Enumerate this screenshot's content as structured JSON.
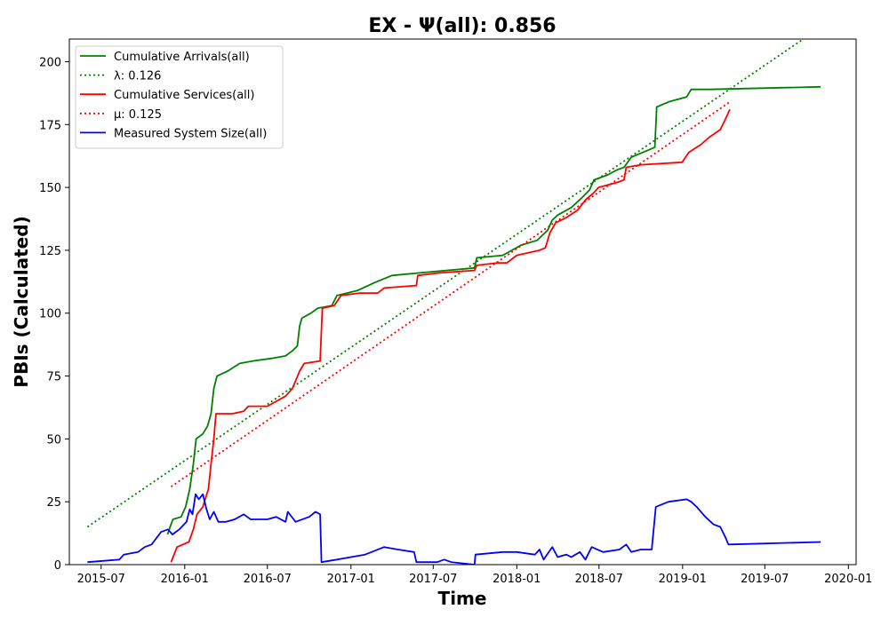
{
  "chart_data": {
    "type": "line",
    "title": "EX -  Ψ(all): 0.856",
    "xlabel": "Time",
    "ylabel": "PBIs (Calculated)",
    "xlim": [
      "2015-04-22",
      "2020-01-18"
    ],
    "ylim": [
      0,
      209
    ],
    "x_ticks": [
      {
        "date": "2015-07-01",
        "label": "2015-07"
      },
      {
        "date": "2016-01-01",
        "label": "2016-01"
      },
      {
        "date": "2016-07-01",
        "label": "2016-07"
      },
      {
        "date": "2017-01-01",
        "label": "2017-01"
      },
      {
        "date": "2017-07-01",
        "label": "2017-07"
      },
      {
        "date": "2018-01-01",
        "label": "2018-01"
      },
      {
        "date": "2018-07-01",
        "label": "2018-07"
      },
      {
        "date": "2019-01-01",
        "label": "2019-01"
      },
      {
        "date": "2019-07-01",
        "label": "2019-07"
      },
      {
        "date": "2020-01-01",
        "label": "2020-01"
      }
    ],
    "y_ticks": [
      0,
      25,
      50,
      75,
      100,
      125,
      150,
      175,
      200
    ],
    "grid": false,
    "legend_position": "top-left",
    "series": [
      {
        "name": "Cumulative Arrivals(all)",
        "color": "#008000",
        "style": "solid",
        "points": [
          [
            "2015-11-24",
            12
          ],
          [
            "2015-11-30",
            15
          ],
          [
            "2015-12-06",
            18
          ],
          [
            "2015-12-24",
            19
          ],
          [
            "2016-01-03",
            23
          ],
          [
            "2016-01-12",
            30
          ],
          [
            "2016-01-20",
            40
          ],
          [
            "2016-01-26",
            50
          ],
          [
            "2016-02-10",
            52
          ],
          [
            "2016-02-20",
            55
          ],
          [
            "2016-02-28",
            60
          ],
          [
            "2016-03-05",
            70
          ],
          [
            "2016-03-12",
            75
          ],
          [
            "2016-04-05",
            77
          ],
          [
            "2016-05-01",
            80
          ],
          [
            "2016-05-30",
            81
          ],
          [
            "2016-07-10",
            82
          ],
          [
            "2016-08-10",
            83
          ],
          [
            "2016-08-25",
            85
          ],
          [
            "2016-09-05",
            87
          ],
          [
            "2016-09-10",
            95
          ],
          [
            "2016-09-15",
            98
          ],
          [
            "2016-10-05",
            100
          ],
          [
            "2016-10-20",
            102
          ],
          [
            "2016-11-20",
            103
          ],
          [
            "2016-12-01",
            107
          ],
          [
            "2017-01-15",
            109
          ],
          [
            "2017-02-20",
            112
          ],
          [
            "2017-04-01",
            115
          ],
          [
            "2017-06-01",
            116
          ],
          [
            "2017-09-30",
            118
          ],
          [
            "2017-10-05",
            122
          ],
          [
            "2017-12-01",
            123
          ],
          [
            "2018-01-10",
            127
          ],
          [
            "2018-02-15",
            129
          ],
          [
            "2018-03-10",
            133
          ],
          [
            "2018-03-20",
            137
          ],
          [
            "2018-04-01",
            139
          ],
          [
            "2018-05-01",
            142
          ],
          [
            "2018-05-25",
            146
          ],
          [
            "2018-06-10",
            149
          ],
          [
            "2018-06-20",
            153
          ],
          [
            "2018-07-20",
            155
          ],
          [
            "2018-08-10",
            157
          ],
          [
            "2018-08-25",
            158
          ],
          [
            "2018-09-10",
            162
          ],
          [
            "2018-10-20",
            165
          ],
          [
            "2018-11-01",
            166
          ],
          [
            "2018-11-05",
            182
          ],
          [
            "2018-12-01",
            184
          ],
          [
            "2019-01-10",
            186
          ],
          [
            "2019-01-20",
            189
          ],
          [
            "2019-03-01",
            189
          ],
          [
            "2019-11-01",
            190
          ]
        ]
      },
      {
        "name": "λ: 0.126",
        "color": "#008000",
        "style": "dotted",
        "points": [
          [
            "2015-06-01",
            15
          ],
          [
            "2019-10-10",
            211
          ]
        ]
      },
      {
        "name": "Cumulative Services(all)",
        "color": "#ff0000",
        "style": "solid",
        "points": [
          [
            "2015-12-02",
            1
          ],
          [
            "2015-12-15",
            7
          ],
          [
            "2016-01-10",
            9
          ],
          [
            "2016-01-20",
            14
          ],
          [
            "2016-01-28",
            20
          ],
          [
            "2016-02-10",
            23
          ],
          [
            "2016-02-22",
            30
          ],
          [
            "2016-02-28",
            40
          ],
          [
            "2016-03-05",
            50
          ],
          [
            "2016-03-10",
            60
          ],
          [
            "2016-04-15",
            60
          ],
          [
            "2016-05-10",
            61
          ],
          [
            "2016-05-20",
            63
          ],
          [
            "2016-07-01",
            63
          ],
          [
            "2016-08-10",
            67
          ],
          [
            "2016-08-25",
            70
          ],
          [
            "2016-09-10",
            77
          ],
          [
            "2016-09-20",
            80
          ],
          [
            "2016-10-25",
            81
          ],
          [
            "2016-10-30",
            102
          ],
          [
            "2016-11-25",
            103
          ],
          [
            "2016-12-10",
            107
          ],
          [
            "2017-01-20",
            108
          ],
          [
            "2017-03-01",
            108
          ],
          [
            "2017-03-15",
            110
          ],
          [
            "2017-05-25",
            111
          ],
          [
            "2017-05-28",
            115
          ],
          [
            "2017-07-15",
            116
          ],
          [
            "2017-09-30",
            117
          ],
          [
            "2017-10-05",
            119
          ],
          [
            "2017-11-20",
            120
          ],
          [
            "2017-12-10",
            120
          ],
          [
            "2018-01-01",
            123
          ],
          [
            "2018-02-20",
            125
          ],
          [
            "2018-03-05",
            126
          ],
          [
            "2018-03-15",
            132
          ],
          [
            "2018-03-28",
            136
          ],
          [
            "2018-04-20",
            138
          ],
          [
            "2018-05-15",
            141
          ],
          [
            "2018-06-01",
            145
          ],
          [
            "2018-06-20",
            148
          ],
          [
            "2018-06-30",
            150
          ],
          [
            "2018-08-10",
            152
          ],
          [
            "2018-08-25",
            153
          ],
          [
            "2018-08-30",
            158
          ],
          [
            "2018-10-01",
            159
          ],
          [
            "2018-12-31",
            160
          ],
          [
            "2019-01-15",
            164
          ],
          [
            "2019-02-10",
            167
          ],
          [
            "2019-03-01",
            170
          ],
          [
            "2019-03-25",
            173
          ],
          [
            "2019-04-05",
            177
          ],
          [
            "2019-04-15",
            181
          ]
        ]
      },
      {
        "name": "μ: 0.125",
        "color": "#ff0000",
        "style": "dotted",
        "points": [
          [
            "2015-12-02",
            31
          ],
          [
            "2019-04-15",
            184
          ]
        ]
      },
      {
        "name": "Measured System Size(all)",
        "color": "#0000ff",
        "style": "solid",
        "points": [
          [
            "2015-06-01",
            1
          ],
          [
            "2015-08-10",
            2
          ],
          [
            "2015-08-20",
            4
          ],
          [
            "2015-09-20",
            5
          ],
          [
            "2015-10-05",
            7
          ],
          [
            "2015-10-20",
            8
          ],
          [
            "2015-11-10",
            13
          ],
          [
            "2015-11-25",
            14
          ],
          [
            "2015-12-05",
            12
          ],
          [
            "2015-12-20",
            14
          ],
          [
            "2016-01-05",
            17
          ],
          [
            "2016-01-12",
            22
          ],
          [
            "2016-01-18",
            20
          ],
          [
            "2016-01-25",
            28
          ],
          [
            "2016-02-01",
            26
          ],
          [
            "2016-02-10",
            28
          ],
          [
            "2016-02-18",
            22
          ],
          [
            "2016-02-25",
            18
          ],
          [
            "2016-03-05",
            21
          ],
          [
            "2016-03-15",
            17
          ],
          [
            "2016-04-01",
            17
          ],
          [
            "2016-04-20",
            18
          ],
          [
            "2016-05-10",
            20
          ],
          [
            "2016-05-25",
            18
          ],
          [
            "2016-07-01",
            18
          ],
          [
            "2016-07-20",
            19
          ],
          [
            "2016-08-10",
            17
          ],
          [
            "2016-08-15",
            21
          ],
          [
            "2016-09-01",
            17
          ],
          [
            "2016-10-01",
            19
          ],
          [
            "2016-10-15",
            21
          ],
          [
            "2016-10-25",
            20
          ],
          [
            "2016-10-28",
            1
          ],
          [
            "2016-12-01",
            2
          ],
          [
            "2017-01-01",
            3
          ],
          [
            "2017-02-01",
            4
          ],
          [
            "2017-03-15",
            7
          ],
          [
            "2017-04-15",
            6
          ],
          [
            "2017-05-20",
            5
          ],
          [
            "2017-05-25",
            1
          ],
          [
            "2017-07-10",
            1
          ],
          [
            "2017-07-25",
            2
          ],
          [
            "2017-08-10",
            1
          ],
          [
            "2017-09-30",
            0
          ],
          [
            "2017-10-02",
            4
          ],
          [
            "2017-12-01",
            5
          ],
          [
            "2018-01-01",
            5
          ],
          [
            "2018-02-10",
            4
          ],
          [
            "2018-02-20",
            6
          ],
          [
            "2018-03-01",
            2
          ],
          [
            "2018-03-20",
            7
          ],
          [
            "2018-04-01",
            3
          ],
          [
            "2018-04-20",
            4
          ],
          [
            "2018-05-01",
            3
          ],
          [
            "2018-05-20",
            5
          ],
          [
            "2018-06-01",
            2
          ],
          [
            "2018-06-15",
            7
          ],
          [
            "2018-07-10",
            5
          ],
          [
            "2018-08-15",
            6
          ],
          [
            "2018-08-30",
            8
          ],
          [
            "2018-09-10",
            5
          ],
          [
            "2018-10-01",
            6
          ],
          [
            "2018-10-25",
            6
          ],
          [
            "2018-11-03",
            23
          ],
          [
            "2018-12-01",
            25
          ],
          [
            "2019-01-10",
            26
          ],
          [
            "2019-01-20",
            25
          ],
          [
            "2019-02-01",
            23
          ],
          [
            "2019-02-20",
            19
          ],
          [
            "2019-03-10",
            16
          ],
          [
            "2019-03-25",
            15
          ],
          [
            "2019-04-05",
            11
          ],
          [
            "2019-04-12",
            8
          ],
          [
            "2019-11-01",
            9
          ]
        ]
      }
    ]
  }
}
